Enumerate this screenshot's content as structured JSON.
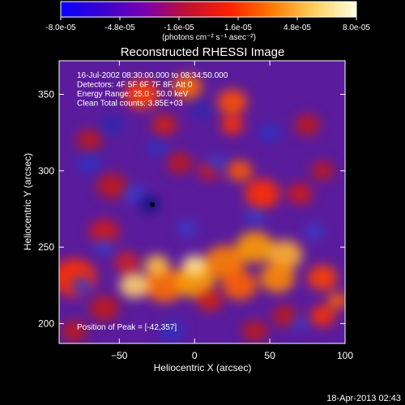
{
  "colorbar": {
    "ticks": [
      "-8.0e-05",
      "-4.8e-05",
      "-1.6e-05",
      "1.6e-05",
      "4.8e-05",
      "8.0e-05"
    ],
    "unit": "(photons cm⁻² s⁻¹ asec⁻²)",
    "colors": [
      "#0a00ff",
      "#3a00d0",
      "#7a00b0",
      "#c01030",
      "#ff2000",
      "#ff7a00",
      "#ffd060",
      "#ffffe0"
    ]
  },
  "chart_data": {
    "type": "heatmap",
    "title": "Reconstructed RHESSI Image",
    "xlabel": "Heliocentric X (arcsec)",
    "ylabel": "Heliocentric Y (arcsec)",
    "xlim": [
      -90,
      100
    ],
    "ylim": [
      187,
      372
    ],
    "xticks": [
      -50,
      0,
      50,
      100
    ],
    "yticks": [
      200,
      250,
      300,
      350
    ],
    "xtick_labels": [
      "−50",
      "0",
      "50",
      "100"
    ],
    "ytick_labels": [
      "200",
      "250",
      "300",
      "350"
    ],
    "vmin": -8e-05,
    "vmax": 8e-05,
    "annotations": [
      "16-Jul-2002 08:30:00.000 to 08:34:50.000",
      "Detectors: 4F 5F 6F 7F 8F, Att 0",
      "Energy Range: 25.0 - 50.0 keV",
      "Clean    Total counts: 3.85E+03"
    ],
    "peak_label": "Position of Peak = [-42,357]",
    "peak": [
      -42,
      357
    ]
  },
  "footer": {
    "timestamp": "18-Apr-2013 02:43"
  }
}
